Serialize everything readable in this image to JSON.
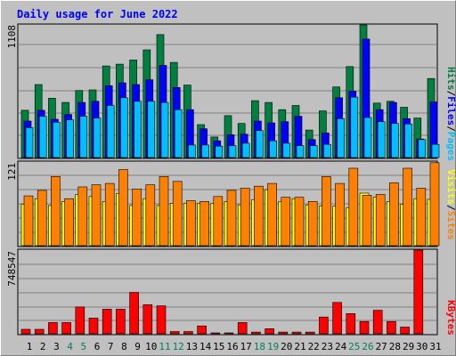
{
  "chart_data": {
    "type": "bar",
    "title": "Daily usage for June 2022",
    "categories": [
      "1",
      "2",
      "3",
      "4",
      "5",
      "6",
      "7",
      "8",
      "9",
      "10",
      "11",
      "12",
      "13",
      "14",
      "15",
      "16",
      "17",
      "18",
      "19",
      "20",
      "21",
      "22",
      "23",
      "24",
      "25",
      "26",
      "27",
      "28",
      "29",
      "30",
      "31"
    ],
    "weekend_days": [
      4,
      5,
      11,
      12,
      18,
      19,
      25,
      26
    ],
    "panels": {
      "hits_files_pages": {
        "y_max_label": "1108",
        "y_max": 1108,
        "series": [
          {
            "name": "Hits",
            "color": "#008040",
            "values": [
              395,
              610,
              495,
              460,
              560,
              565,
              765,
              780,
              815,
              900,
              1027,
              795,
              605,
              275,
              172,
              350,
              285,
              475,
              460,
              400,
              435,
              230,
              390,
              590,
              760,
              1108,
              455,
              470,
              420,
              330,
              660
            ]
          },
          {
            "name": "Files",
            "color": "#0000ff",
            "values": [
              305,
              395,
              320,
              360,
              460,
              470,
              600,
              625,
              610,
              650,
              770,
              585,
              400,
              240,
              140,
              190,
              195,
              305,
              290,
              300,
              345,
              150,
              205,
              500,
              555,
              990,
              400,
              460,
              325,
              155,
              465
            ]
          },
          {
            "name": "Pages",
            "color": "#00bfff",
            "values": [
              250,
              345,
              295,
              315,
              345,
              330,
              435,
              500,
              470,
              470,
              460,
              400,
              105,
              105,
              95,
              100,
              120,
              225,
              140,
              120,
              100,
              100,
              110,
              325,
              505,
              335,
              300,
              285,
              280,
              150,
              110
            ]
          }
        ]
      },
      "visits_sites": {
        "y_max_label": "121",
        "y_max": 121,
        "series": [
          {
            "name": "Visits",
            "color": "#ffff00",
            "values": [
              60,
              68,
              58,
              64,
              74,
              71,
              64,
              75,
              58,
              68,
              58,
              61,
              61,
              61,
              61,
              64,
              59,
              66,
              81,
              64,
              68,
              59,
              57,
              57,
              55,
              76,
              70,
              64,
              60,
              68,
              67
            ]
          },
          {
            "name": "Sites",
            "color": "#ff8000",
            "values": [
              72,
              80,
              100,
              68,
              85,
              88,
              90,
              110,
              82,
              88,
              100,
              93,
              65,
              64,
              71,
              80,
              83,
              86,
              90,
              70,
              70,
              64,
              100,
              90,
              112,
              73,
              74,
              91,
              112,
              83,
              120
            ]
          }
        ]
      },
      "kbytes": {
        "y_max_label": "748547",
        "y_max": 748547,
        "series": [
          {
            "name": "KBytes",
            "color": "#ff0000",
            "values": [
              40000,
              40000,
              100000,
              100000,
              240000,
              140000,
              220000,
              220000,
              370000,
              260000,
              250000,
              20000,
              20000,
              70000,
              5000,
              5000,
              100000,
              15000,
              45000,
              15000,
              15000,
              15000,
              150000,
              280000,
              180000,
              110000,
              210000,
              110000,
              60000,
              748547,
              0
            ]
          }
        ]
      }
    },
    "legend": {
      "top_right": [
        "Pages",
        "/",
        "Files",
        "/",
        "Hits"
      ],
      "middle_right": [
        "Sites",
        "/",
        "Visits"
      ],
      "bottom_right": [
        "KBytes"
      ]
    },
    "colors": {
      "background": "#c0c0c0",
      "grid": "#808080",
      "title": "#0000ff",
      "weekday_label": "#000000",
      "weekend_label": "#00805c",
      "slash": "#000000"
    }
  }
}
